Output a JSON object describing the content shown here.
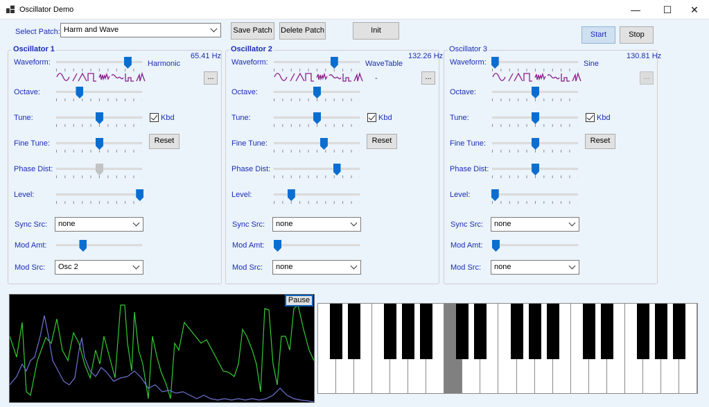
{
  "window": {
    "title": "Oscillator Demo",
    "min": "—",
    "max": "☐",
    "close": "✕"
  },
  "toolbar": {
    "select_patch_label": "Select Patch:",
    "patch_value": "Harm and Wave",
    "save_patch": "Save Patch",
    "delete_patch": "Delete Patch",
    "init": "Init",
    "start": "Start",
    "stop": "Stop"
  },
  "osc": [
    {
      "title": "Oscillator 1",
      "freq": "65.41 Hz",
      "wave_name": "Harmonic",
      "more": "...",
      "kbd": "Kbd",
      "reset": "Reset",
      "sync_src": "none",
      "mod_src": "Osc 2",
      "levels": {
        "waveform": 0.83,
        "octave": 0.27,
        "tune": 0.5,
        "fine_tune": 0.5,
        "phase_dist": 0.5,
        "level": 0.97,
        "mod_amt": 0.27
      }
    },
    {
      "title": "Oscillator 2",
      "freq": "132.26 Hz",
      "wave_name": "WaveTable",
      "wave_suffix": "-",
      "more": "...",
      "kbd": "Kbd",
      "reset": "Reset",
      "sync_src": "none",
      "mod_src": "none",
      "levels": {
        "waveform": 0.7,
        "octave": 0.5,
        "tune": 0.5,
        "fine_tune": 0.58,
        "phase_dist": 0.73,
        "level": 0.2,
        "mod_amt": 0.0
      }
    },
    {
      "title": "Oscillator 3",
      "freq": "130.81 Hz",
      "wave_name": "Sine",
      "more": "...",
      "kbd": "Kbd",
      "reset": "Reset",
      "sync_src": "none",
      "mod_src": "none",
      "levels": {
        "waveform": 0.03,
        "octave": 0.5,
        "tune": 0.5,
        "fine_tune": 0.5,
        "phase_dist": 0.5,
        "level": 0.03,
        "mod_amt": 0.0
      }
    }
  ],
  "labels": {
    "waveform": "Waveform:",
    "octave": "Octave:",
    "tune": "Tune:",
    "fine_tune": "Fine Tune:",
    "phase_dist": "Phase Dist:",
    "level": "Level:",
    "sync_src": "Sync Src:",
    "mod_amt": "Mod Amt:",
    "mod_src": "Mod Src:"
  },
  "scope": {
    "pause": "Pause",
    "colors": {
      "green": "#33cc33",
      "blue": "#6f74d6"
    }
  },
  "keyboard": {
    "white_key_count": 21,
    "pressed_white_key_index": 7
  }
}
